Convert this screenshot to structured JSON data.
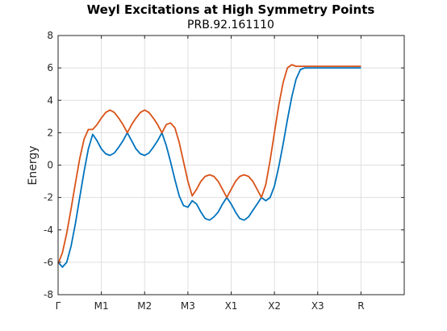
{
  "chart_data": {
    "type": "line",
    "title": "Weyl Excitations at High Symmetry Points",
    "subtitle": "PRB.92.161110",
    "xlabel": "",
    "ylabel": "Energy",
    "x_tick_labels": [
      "Γ",
      "M1",
      "M2",
      "M3",
      "X1",
      "X2",
      "X3",
      "R"
    ],
    "y_ticks": [
      -8,
      -6,
      -4,
      -2,
      0,
      2,
      4,
      6,
      8
    ],
    "xlim": [
      0,
      8
    ],
    "ylim": [
      -8,
      8
    ],
    "grid": true,
    "legend": "none",
    "series": [
      {
        "color": "#0072BD",
        "x": [
          0,
          0.1,
          0.2,
          0.3,
          0.4,
          0.5,
          0.6,
          0.7,
          0.8,
          0.9,
          1.0,
          1.1,
          1.2,
          1.3,
          1.4,
          1.5,
          1.6,
          1.7,
          1.8,
          1.9,
          2.0,
          2.1,
          2.2,
          2.3,
          2.4,
          2.5,
          2.6,
          2.7,
          2.8,
          2.9,
          3.0,
          3.1,
          3.2,
          3.3,
          3.4,
          3.5,
          3.6,
          3.7,
          3.8,
          3.9,
          4.0,
          4.1,
          4.2,
          4.3,
          4.4,
          4.5,
          4.6,
          4.7,
          4.8,
          4.9,
          5.0,
          5.1,
          5.2,
          5.3,
          5.4,
          5.5,
          5.6,
          5.7,
          5.8,
          5.9,
          6.0,
          6.1,
          6.2,
          6.3,
          6.4,
          6.5,
          6.6,
          6.7,
          6.8,
          6.9,
          7.0
        ],
        "y": [
          -6.0,
          -6.3,
          -6.0,
          -5.0,
          -3.6,
          -2.0,
          -0.4,
          1.0,
          1.9,
          1.5,
          1.0,
          0.7,
          0.6,
          0.75,
          1.1,
          1.5,
          2.0,
          1.5,
          1.0,
          0.7,
          0.6,
          0.75,
          1.1,
          1.5,
          2.0,
          1.2,
          0.2,
          -0.9,
          -1.9,
          -2.5,
          -2.6,
          -2.2,
          -2.4,
          -2.9,
          -3.3,
          -3.4,
          -3.2,
          -2.9,
          -2.4,
          -2.0,
          -2.4,
          -2.9,
          -3.3,
          -3.4,
          -3.2,
          -2.8,
          -2.4,
          -2.0,
          -2.2,
          -2.0,
          -1.3,
          -0.1,
          1.3,
          2.8,
          4.2,
          5.3,
          5.9,
          6.0,
          6.0,
          6.0,
          6.0,
          6.0,
          6.0,
          6.0,
          6.0,
          6.0,
          6.0,
          6.0,
          6.0,
          6.0,
          6.0
        ]
      },
      {
        "color": "#D95319",
        "x": [
          0,
          0.1,
          0.2,
          0.3,
          0.4,
          0.5,
          0.6,
          0.7,
          0.8,
          0.9,
          1.0,
          1.1,
          1.2,
          1.3,
          1.4,
          1.5,
          1.6,
          1.7,
          1.8,
          1.9,
          2.0,
          2.1,
          2.2,
          2.3,
          2.4,
          2.5,
          2.6,
          2.7,
          2.8,
          2.9,
          3.0,
          3.1,
          3.2,
          3.3,
          3.4,
          3.5,
          3.6,
          3.7,
          3.8,
          3.9,
          4.0,
          4.1,
          4.2,
          4.3,
          4.4,
          4.5,
          4.6,
          4.7,
          4.8,
          4.9,
          5.0,
          5.1,
          5.2,
          5.3,
          5.4,
          5.5,
          5.6,
          5.7,
          5.8,
          5.9,
          6.0,
          6.1,
          6.2,
          6.3,
          6.4,
          6.5,
          6.6,
          6.7,
          6.8,
          6.9,
          7.0
        ],
        "y": [
          -6.1,
          -5.4,
          -4.2,
          -2.7,
          -1.1,
          0.4,
          1.6,
          2.2,
          2.2,
          2.5,
          2.9,
          3.25,
          3.4,
          3.25,
          2.9,
          2.5,
          2.0,
          2.5,
          2.9,
          3.25,
          3.4,
          3.25,
          2.9,
          2.5,
          2.0,
          2.5,
          2.6,
          2.3,
          1.4,
          0.2,
          -1.0,
          -1.9,
          -1.5,
          -1.0,
          -0.7,
          -0.6,
          -0.7,
          -1.0,
          -1.5,
          -2.0,
          -1.5,
          -1.0,
          -0.7,
          -0.6,
          -0.7,
          -1.0,
          -1.5,
          -2.0,
          -1.2,
          0.3,
          2.0,
          3.7,
          5.1,
          6.0,
          6.2,
          6.1,
          6.1,
          6.1,
          6.1,
          6.1,
          6.1,
          6.1,
          6.1,
          6.1,
          6.1,
          6.1,
          6.1,
          6.1,
          6.1,
          6.1,
          6.1
        ]
      }
    ]
  }
}
